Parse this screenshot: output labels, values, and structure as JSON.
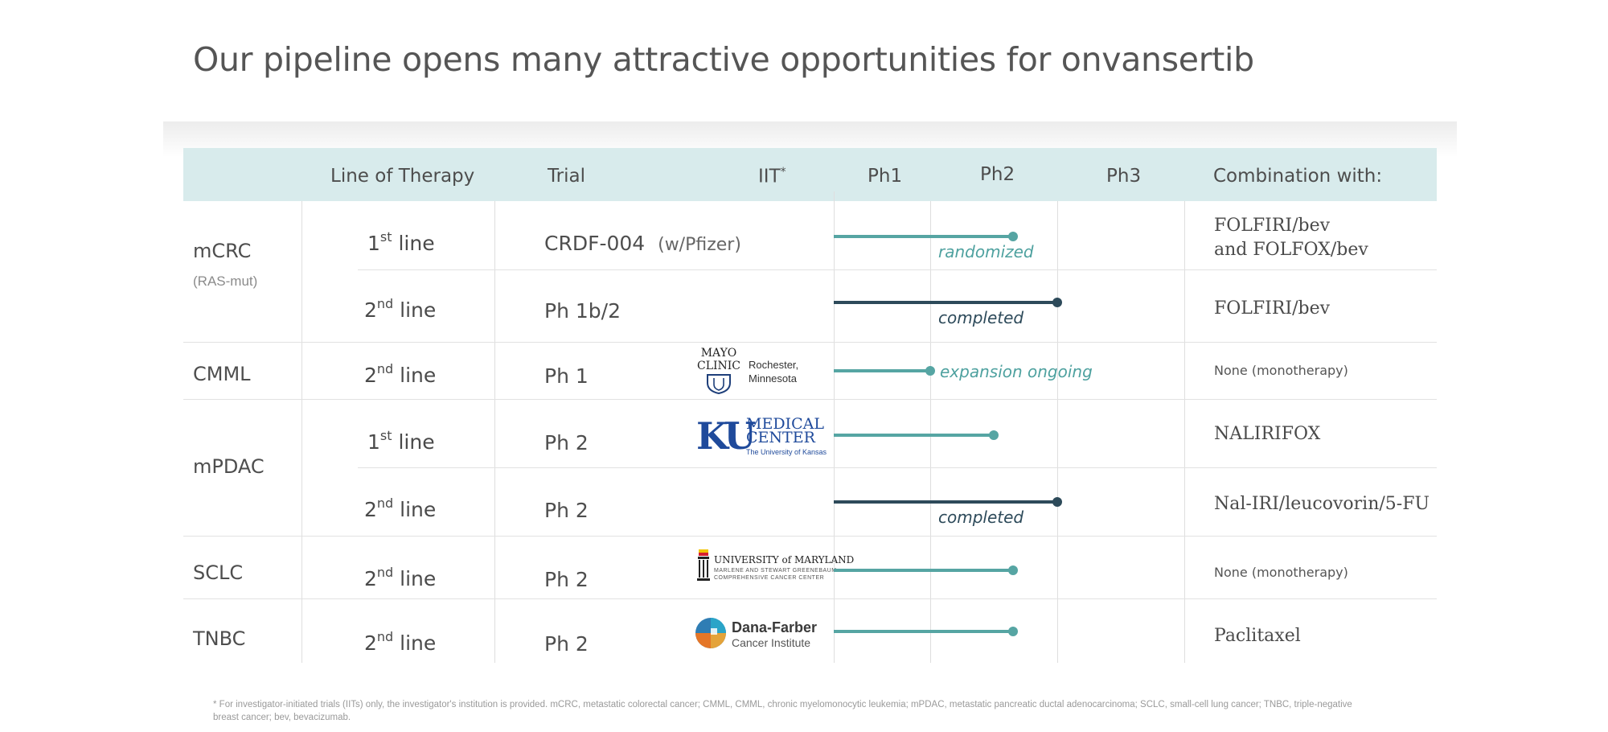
{
  "slide": {
    "title": "Our pipeline opens many attractive opportunities for onvansertib"
  },
  "header": {
    "line_of_therapy": "Line of Therapy",
    "trial": "Trial",
    "iit": "IIT",
    "iit_mark": "*",
    "ph1": "Ph1",
    "ph2": "Ph2",
    "ph3": "Ph3",
    "combination": "Combination with:"
  },
  "indications": {
    "mcrc": "mCRC",
    "mcrc_sub": "(RAS-mut)",
    "cmml": "CMML",
    "mpdac": "mPDAC",
    "sclc": "SCLC",
    "tnbc": "TNBC"
  },
  "rows": [
    {
      "line_num": "1",
      "line_sup": "st",
      "line_word": "line",
      "trial": "CRDF-004",
      "trial_note": "(w/Pfizer)",
      "combo1": "FOLFIRI/bev",
      "combo2": "and FOLFOX/bev",
      "status": "randomized",
      "progress_phase": 1.65
    },
    {
      "line_num": "2",
      "line_sup": "nd",
      "line_word": "line",
      "trial": "Ph 1b/2",
      "combo1": "FOLFIRI/bev",
      "status": "completed",
      "progress_phase": 2.0
    },
    {
      "line_num": "2",
      "line_sup": "nd",
      "line_word": "line",
      "trial": "Ph 1",
      "combo1": "None (monotherapy)",
      "status": "expansion ongoing",
      "progress_phase": 1.0
    },
    {
      "line_num": "1",
      "line_sup": "st",
      "line_word": "line",
      "trial": "Ph 2",
      "combo1": "NALIRIFOX",
      "progress_phase": 1.5
    },
    {
      "line_num": "2",
      "line_sup": "nd",
      "line_word": "line",
      "trial": "Ph 2",
      "combo1": "Nal-IRI/leucovorin/5-FU",
      "status": "completed",
      "progress_phase": 2.0
    },
    {
      "line_num": "2",
      "line_sup": "nd",
      "line_word": "line",
      "trial": "Ph 2",
      "combo1": "None (monotherapy)",
      "progress_phase": 1.65
    },
    {
      "line_num": "2",
      "line_sup": "nd",
      "line_word": "line",
      "trial": "Ph 2",
      "combo1": "Paclitaxel",
      "progress_phase": 1.65
    }
  ],
  "logos": {
    "mayo_word1": "MAYO",
    "mayo_word2": "CLINIC",
    "mayo_loc1": "Rochester,",
    "mayo_loc2": "Minnesota",
    "ku_mark": "KU",
    "ku_med1": "MEDICAL",
    "ku_med2": "CENTER",
    "ku_uni": "The University of Kansas",
    "umd_name": "UNIVERSITY of MARYLAND",
    "umd_sub1": "MARLENE AND STEWART GREENEBAUM",
    "umd_sub2": "COMPREHENSIVE CANCER CENTER",
    "dfci_name": "Dana-Farber",
    "dfci_sub": "Cancer Institute"
  },
  "colors": {
    "teal": "#56a5a3",
    "navy": "#2d4a5a",
    "header_bg": "#d8ebec"
  },
  "footnote": "* For investigator-initiated trials (IITs) only, the investigator's institution is provided. mCRC, metastatic colorectal cancer; CMML, CMML, chronic myelomonocytic leukemia; mPDAC, metastatic pancreatic ductal adenocarcinoma; SCLC, small-cell lung cancer; TNBC, triple-negative breast cancer; bev, bevacizumab."
}
